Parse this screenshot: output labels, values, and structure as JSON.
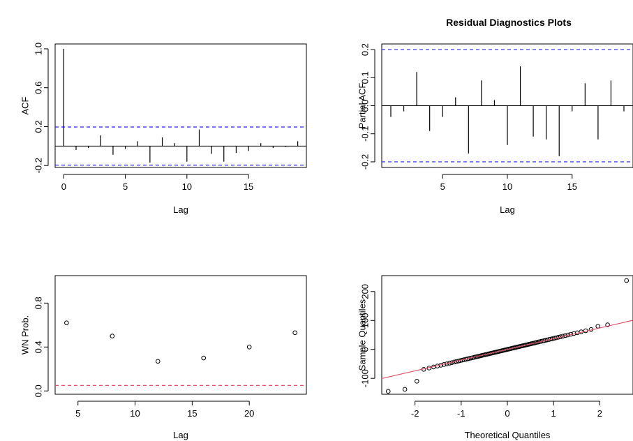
{
  "page": {
    "title": "Residual Diagnostics Plots"
  },
  "colors": {
    "ci_line": "#2222ee",
    "ref_line_red": "#df536b",
    "ink": "#000000"
  },
  "chart_data": [
    {
      "id": "acf",
      "type": "bar",
      "xlabel": "Lag",
      "ylabel": "ACF",
      "xlim": [
        -0.7,
        19.7
      ],
      "ylim": [
        -0.22,
        1.05
      ],
      "xticks": [
        0,
        5,
        10,
        15
      ],
      "yticks": [
        -0.2,
        0.2,
        0.6,
        1.0
      ],
      "ytick_labels": [
        "-0.2",
        "0.2",
        "0.6",
        "1.0"
      ],
      "ci": [
        0.196,
        -0.196
      ],
      "x": [
        0,
        1,
        2,
        3,
        4,
        5,
        6,
        7,
        8,
        9,
        10,
        11,
        12,
        13,
        14,
        15,
        16,
        17,
        18,
        19
      ],
      "values": [
        1.0,
        -0.04,
        -0.02,
        0.11,
        -0.09,
        -0.03,
        0.05,
        -0.17,
        0.09,
        0.03,
        -0.16,
        0.17,
        -0.08,
        -0.16,
        -0.07,
        -0.05,
        0.03,
        -0.02,
        -0.01,
        0.05
      ]
    },
    {
      "id": "pacf",
      "type": "bar",
      "xlabel": "Lag",
      "ylabel": "Partial ACF",
      "xlim": [
        0.3,
        19.7
      ],
      "ylim": [
        -0.22,
        0.22
      ],
      "xticks": [
        5,
        10,
        15
      ],
      "yticks": [
        -0.2,
        -0.1,
        0.0,
        0.1,
        0.2
      ],
      "ytick_labels": [
        "-0.2",
        "-0.1",
        "0.0",
        "0.1",
        "0.2"
      ],
      "ci": [
        0.2,
        -0.2
      ],
      "x": [
        1,
        2,
        3,
        4,
        5,
        6,
        7,
        8,
        9,
        10,
        11,
        12,
        13,
        14,
        15,
        16,
        17,
        18,
        19
      ],
      "values": [
        -0.04,
        -0.02,
        0.12,
        -0.09,
        -0.04,
        0.03,
        -0.17,
        0.09,
        0.02,
        -0.14,
        0.14,
        -0.11,
        -0.12,
        -0.18,
        -0.02,
        0.08,
        -0.12,
        0.09,
        -0.02
      ]
    },
    {
      "id": "wn",
      "type": "scatter",
      "xlabel": "Lag",
      "ylabel": "WN Prob.",
      "xlim": [
        3,
        25
      ],
      "ylim": [
        -0.03,
        1.05
      ],
      "xticks": [
        5,
        10,
        15,
        20
      ],
      "yticks": [
        0.0,
        0.4,
        0.8
      ],
      "ytick_labels": [
        "0.0",
        "0.4",
        "0.8"
      ],
      "ref_line": 0.05,
      "x": [
        4,
        8,
        12,
        16,
        20,
        24
      ],
      "y": [
        0.62,
        0.5,
        0.27,
        0.3,
        0.4,
        0.53
      ]
    },
    {
      "id": "qq",
      "type": "scatter",
      "xlabel": "Theoretical Quantiles",
      "ylabel": "Sample Quantiles",
      "xlim": [
        -2.72,
        2.72
      ],
      "ylim": [
        -155,
        255
      ],
      "xticks": [
        -2,
        -1,
        0,
        1,
        2
      ],
      "yticks": [
        -100,
        0,
        100,
        200
      ],
      "ytick_labels": [
        "-100",
        "0",
        "100",
        "200"
      ],
      "qq_line": {
        "intercept": 0,
        "slope": 37
      },
      "n": 100,
      "sd": 38,
      "extremes": [
        [
          -2.58,
          -145
        ],
        [
          -2.22,
          -138
        ],
        [
          -1.96,
          -110
        ],
        [
          1.96,
          80
        ],
        [
          2.17,
          85
        ],
        [
          2.58,
          238
        ]
      ]
    }
  ]
}
